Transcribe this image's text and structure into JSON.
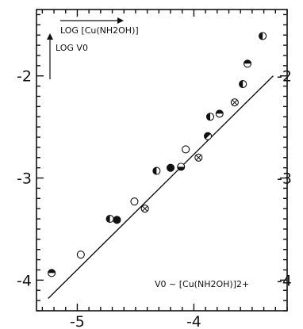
{
  "chart_data": {
    "type": "scatter",
    "x_ticks": [
      "-5",
      "-4"
    ],
    "y_ticks": [
      "-2",
      "-3",
      "-4"
    ],
    "xlim": [
      -5.35,
      -3.2
    ],
    "ylim": [
      -4.3,
      -1.35
    ],
    "grid": false,
    "annotations": {
      "x_arrow_label": "LOG [Cu(NH2OH)]",
      "y_arrow_label": "LOG V0",
      "formula": "V0 ~ [Cu(NH2OH)]2+"
    },
    "fit_line": {
      "x": [
        -5.25,
        -3.32
      ],
      "y": [
        -4.18,
        -2.0
      ]
    },
    "points": [
      {
        "x": -5.22,
        "y": -3.93,
        "marker": "half-top"
      },
      {
        "x": -4.97,
        "y": -3.75,
        "marker": "open"
      },
      {
        "x": -4.72,
        "y": -3.4,
        "marker": "half-left"
      },
      {
        "x": -4.66,
        "y": -3.41,
        "marker": "filled"
      },
      {
        "x": -4.51,
        "y": -3.23,
        "marker": "open"
      },
      {
        "x": -4.42,
        "y": -3.3,
        "marker": "crossed"
      },
      {
        "x": -4.32,
        "y": -2.93,
        "marker": "half-left"
      },
      {
        "x": -4.2,
        "y": -2.9,
        "marker": "filled"
      },
      {
        "x": -4.11,
        "y": -2.89,
        "marker": "half-bottom"
      },
      {
        "x": -4.07,
        "y": -2.72,
        "marker": "open"
      },
      {
        "x": -3.96,
        "y": -2.8,
        "marker": "crossed"
      },
      {
        "x": -3.88,
        "y": -2.59,
        "marker": "half-diagonal"
      },
      {
        "x": -3.86,
        "y": -2.4,
        "marker": "half-left"
      },
      {
        "x": -3.78,
        "y": -2.37,
        "marker": "half-top"
      },
      {
        "x": -3.65,
        "y": -2.26,
        "marker": "crossed"
      },
      {
        "x": -3.58,
        "y": -2.08,
        "marker": "half-left"
      },
      {
        "x": -3.54,
        "y": -1.88,
        "marker": "half-top"
      },
      {
        "x": -3.41,
        "y": -1.61,
        "marker": "half-left"
      }
    ]
  }
}
